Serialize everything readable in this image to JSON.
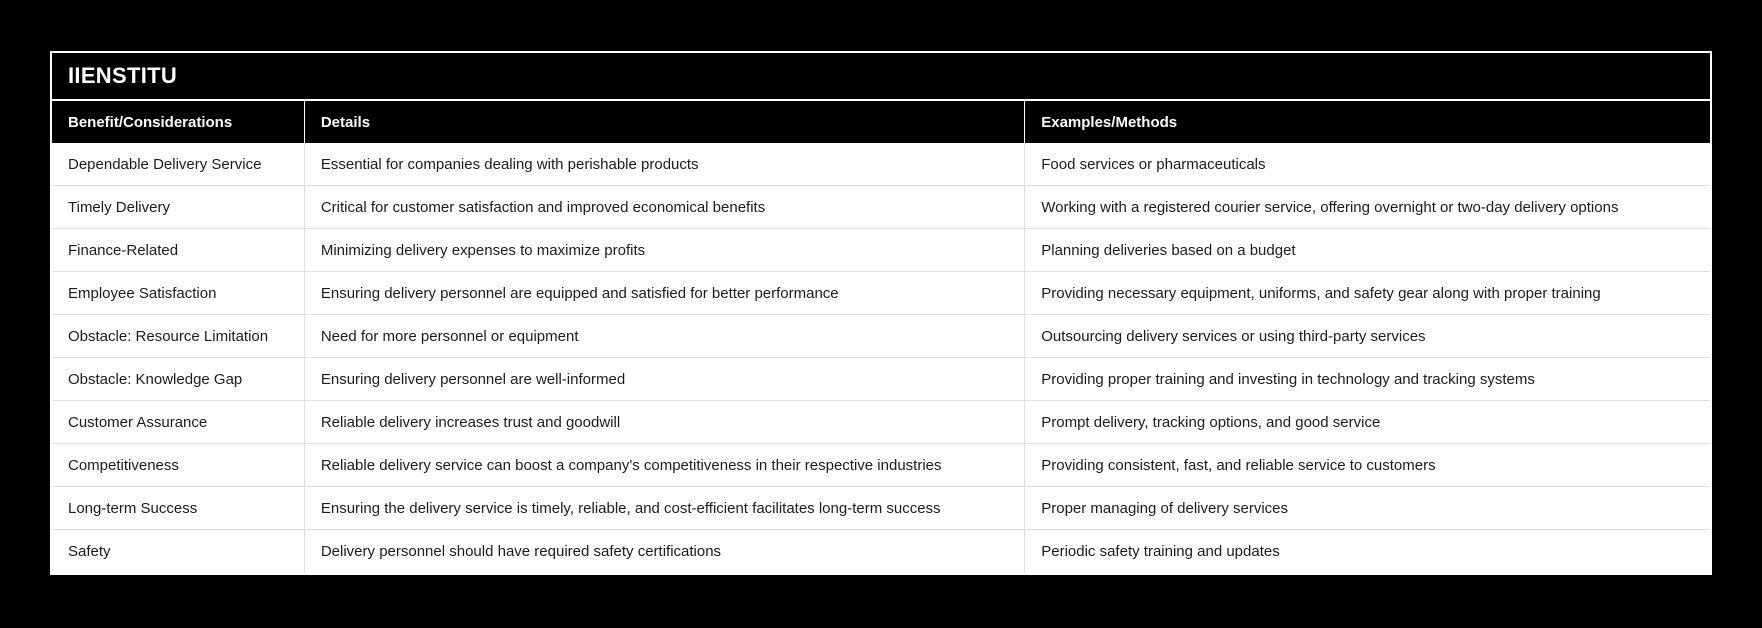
{
  "chart_data": {
    "type": "table",
    "title": "IIENSTITU",
    "columns": [
      "Benefit/Considerations",
      "Details",
      "Examples/Methods"
    ],
    "rows": [
      [
        "Dependable Delivery Service",
        "Essential for companies dealing with perishable products",
        "Food services or pharmaceuticals"
      ],
      [
        "Timely Delivery",
        "Critical for customer satisfaction and improved economical benefits",
        "Working with a registered courier service, offering overnight or two-day delivery options"
      ],
      [
        "Finance-Related",
        "Minimizing delivery expenses to maximize profits",
        "Planning deliveries based on a budget"
      ],
      [
        "Employee Satisfaction",
        "Ensuring delivery personnel are equipped and satisfied for better performance",
        "Providing necessary equipment, uniforms, and safety gear along with proper training"
      ],
      [
        "Obstacle: Resource Limitation",
        "Need for more personnel or equipment",
        "Outsourcing delivery services or using third-party services"
      ],
      [
        "Obstacle: Knowledge Gap",
        "Ensuring delivery personnel are well-informed",
        "Providing proper training and investing in technology and tracking systems"
      ],
      [
        "Customer Assurance",
        "Reliable delivery increases trust and goodwill",
        "Prompt delivery, tracking options, and good service"
      ],
      [
        "Competitiveness",
        "Reliable delivery service can boost a company's competitiveness in their respective industries",
        "Providing consistent, fast, and reliable service to customers"
      ],
      [
        "Long-term Success",
        "Ensuring the delivery service is timely, reliable, and cost-efficient facilitates long-term success",
        "Proper managing of delivery services"
      ],
      [
        "Safety",
        "Delivery personnel should have required safety certifications",
        "Periodic safety training and updates"
      ]
    ]
  },
  "colors": {
    "page_background": "#000000",
    "table_border": "#ffffff",
    "header_background": "#000000",
    "header_text": "#ffffff",
    "row_background": "#ffffff",
    "row_text": "#1c1c1c",
    "row_divider": "#e0e0e0"
  }
}
